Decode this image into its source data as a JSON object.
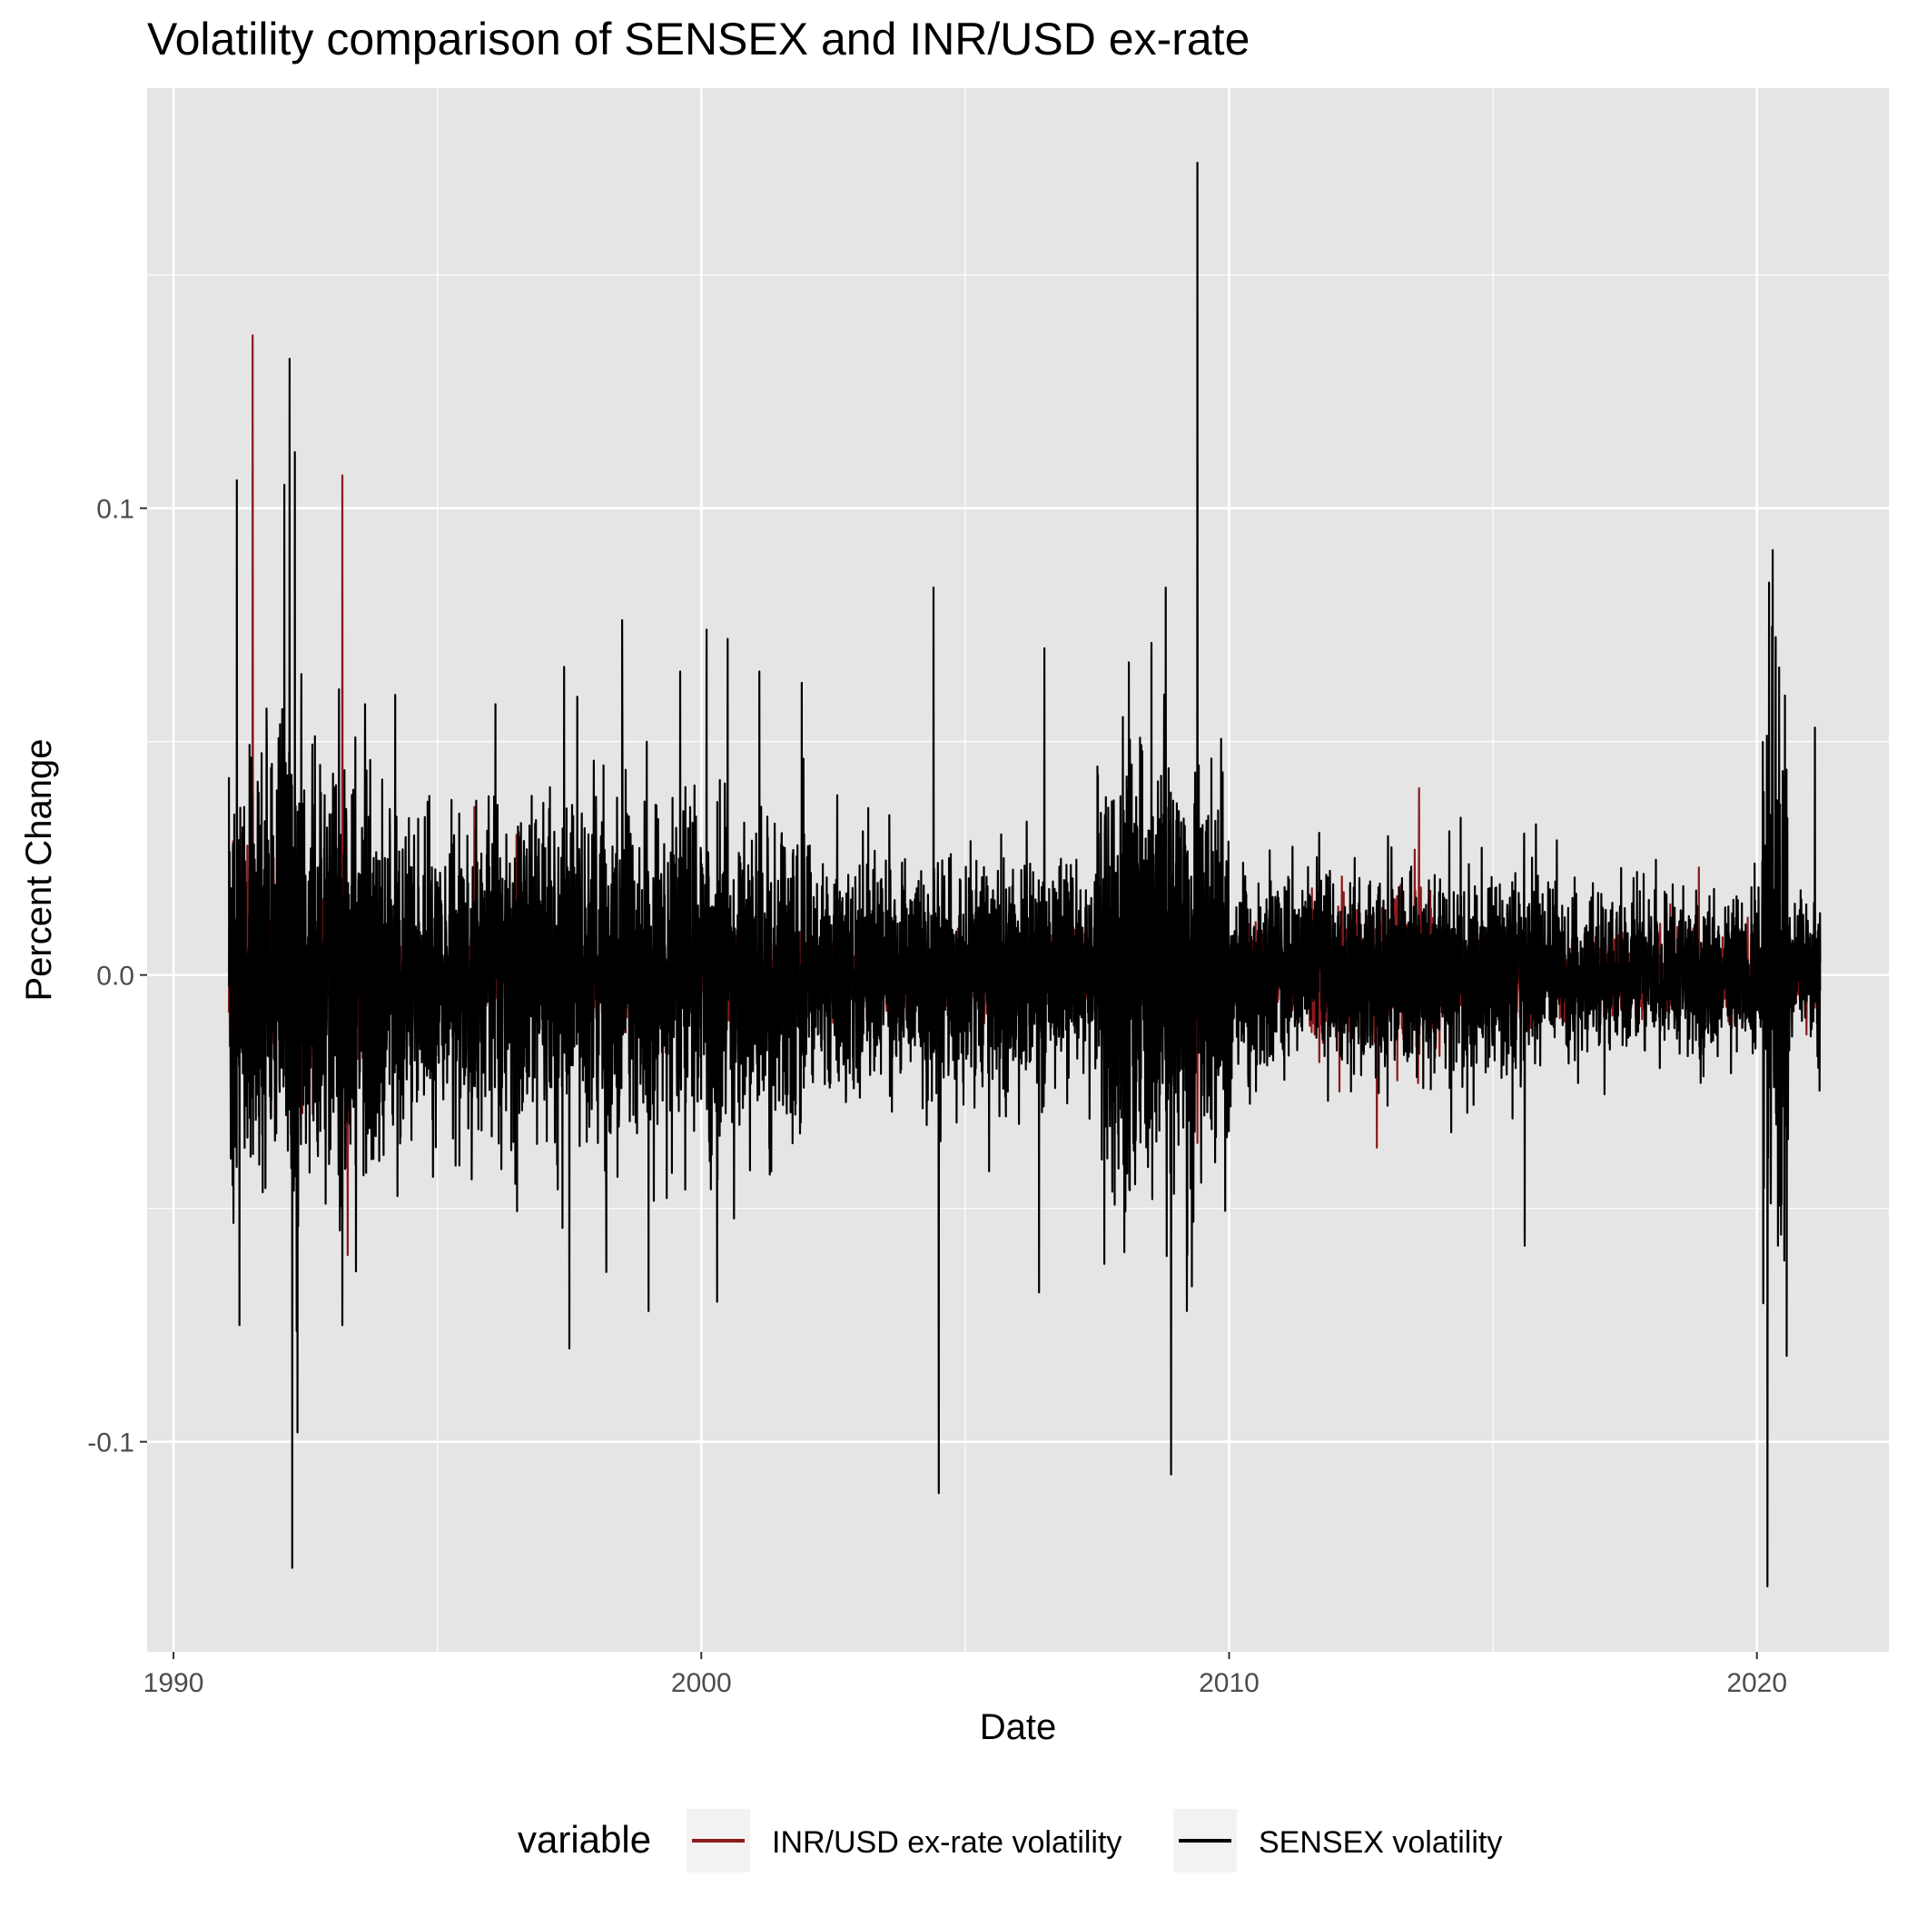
{
  "chart_data": {
    "type": "line",
    "title": "Volatility comparison of SENSEX and INR/USD ex-rate",
    "xlabel": "Date",
    "ylabel": "Percent Change",
    "xlim": [
      1989.5,
      2022.5
    ],
    "ylim": [
      -0.145,
      0.19
    ],
    "x_ticks": [
      1990,
      2000,
      2010,
      2020
    ],
    "x_tick_labels": [
      "1990",
      "2000",
      "2010",
      "2020"
    ],
    "y_ticks": [
      -0.1,
      0.0,
      0.1
    ],
    "y_tick_labels": [
      "-0.1",
      "0.0",
      "0.1"
    ],
    "grid": true,
    "legend": {
      "title": "variable",
      "position": "bottom",
      "entries": [
        "INR/USD ex-rate volatility",
        "SENSEX volatility"
      ]
    },
    "colors": {
      "inr": "#8b1a1a",
      "sensex": "#000000",
      "panel": "#e5e5e5",
      "grid": "#ffffff"
    },
    "series": [
      {
        "name": "INR/USD ex-rate volatility",
        "color": "#8b1a1a",
        "peaks": [
          [
            1991.5,
            0.137
          ],
          [
            1991.6,
            -0.02
          ],
          [
            1993.2,
            0.107
          ],
          [
            1993.3,
            -0.06
          ],
          [
            1995.7,
            0.036
          ],
          [
            1996.5,
            0.03
          ],
          [
            2012.8,
            -0.037
          ],
          [
            2013.6,
            0.04
          ],
          [
            2018.9,
            0.023
          ],
          [
            2009.4,
            -0.036
          ]
        ]
      },
      {
        "name": "SENSEX volatility",
        "color": "#000000",
        "peaks": [
          [
            1991.2,
            0.106
          ],
          [
            1991.25,
            -0.075
          ],
          [
            1992.1,
            0.105
          ],
          [
            1992.2,
            0.132
          ],
          [
            1992.25,
            -0.127
          ],
          [
            1992.3,
            0.112
          ],
          [
            1992.35,
            -0.098
          ],
          [
            1993.2,
            -0.075
          ],
          [
            1994.2,
            0.06
          ],
          [
            1996.1,
            0.058
          ],
          [
            1997.4,
            0.066
          ],
          [
            1997.5,
            -0.08
          ],
          [
            1998.5,
            0.076
          ],
          [
            1999.0,
            -0.072
          ],
          [
            1999.6,
            0.065
          ],
          [
            2000.1,
            0.074
          ],
          [
            2000.3,
            -0.07
          ],
          [
            2000.5,
            0.072
          ],
          [
            2001.1,
            0.065
          ],
          [
            2004.4,
            0.083
          ],
          [
            2004.5,
            -0.111
          ],
          [
            2006.4,
            -0.068
          ],
          [
            2006.5,
            0.07
          ],
          [
            2008.1,
            0.067
          ],
          [
            2008.8,
            0.083
          ],
          [
            2008.9,
            -0.107
          ],
          [
            2009.2,
            -0.072
          ],
          [
            2009.4,
            0.174
          ],
          [
            2015.6,
            -0.058
          ],
          [
            2020.2,
            -0.131
          ],
          [
            2020.3,
            0.091
          ],
          [
            2020.4,
            -0.058
          ],
          [
            2021.1,
            0.053
          ]
        ]
      }
    ]
  }
}
